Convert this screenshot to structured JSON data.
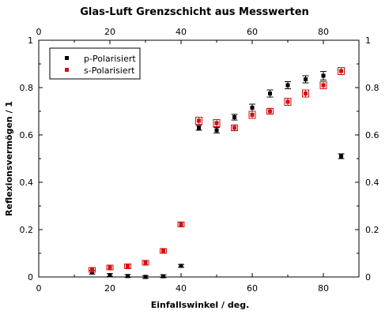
{
  "chart_data": {
    "type": "scatter",
    "title": "Glas-Luft Grenzschicht aus Messwerten",
    "xlabel": "Einfallswinkel / deg.",
    "ylabel": "Reflexionsvermögen / 1",
    "xlim": [
      0,
      90
    ],
    "ylim": [
      0,
      1
    ],
    "x_ticks": [
      "0",
      "20",
      "40",
      "60",
      "80"
    ],
    "y_ticks": [
      "0",
      "0.2",
      "0.4",
      "0.6",
      "0.8",
      "1"
    ],
    "legend_position": "top-left",
    "series": [
      {
        "name": "p-Polarisiert",
        "color": "#000000",
        "marker": "square",
        "x": [
          15,
          20,
          25,
          30,
          35,
          40,
          45,
          50,
          55,
          60,
          65,
          70,
          75,
          80,
          85
        ],
        "y": [
          0.02,
          0.008,
          0.004,
          0.0,
          0.003,
          0.047,
          0.63,
          0.62,
          0.675,
          0.715,
          0.775,
          0.81,
          0.835,
          0.85,
          0.51
        ],
        "y_err": [
          0.008,
          0.006,
          0.006,
          0.006,
          0.006,
          0.006,
          0.01,
          0.012,
          0.012,
          0.015,
          0.015,
          0.015,
          0.015,
          0.018,
          0.01
        ]
      },
      {
        "name": "s-Polarisiert",
        "color": "#d11010",
        "marker": "square",
        "x": [
          15,
          20,
          25,
          30,
          35,
          40,
          45,
          50,
          55,
          60,
          65,
          70,
          75,
          80,
          85
        ],
        "y": [
          0.03,
          0.04,
          0.045,
          0.06,
          0.11,
          0.222,
          0.66,
          0.65,
          0.63,
          0.685,
          0.7,
          0.74,
          0.775,
          0.81,
          0.87
        ],
        "y_err": [
          0.01,
          0.01,
          0.01,
          0.01,
          0.01,
          0.01,
          0.015,
          0.015,
          0.012,
          0.015,
          0.012,
          0.015,
          0.015,
          0.015,
          0.015
        ]
      }
    ]
  }
}
